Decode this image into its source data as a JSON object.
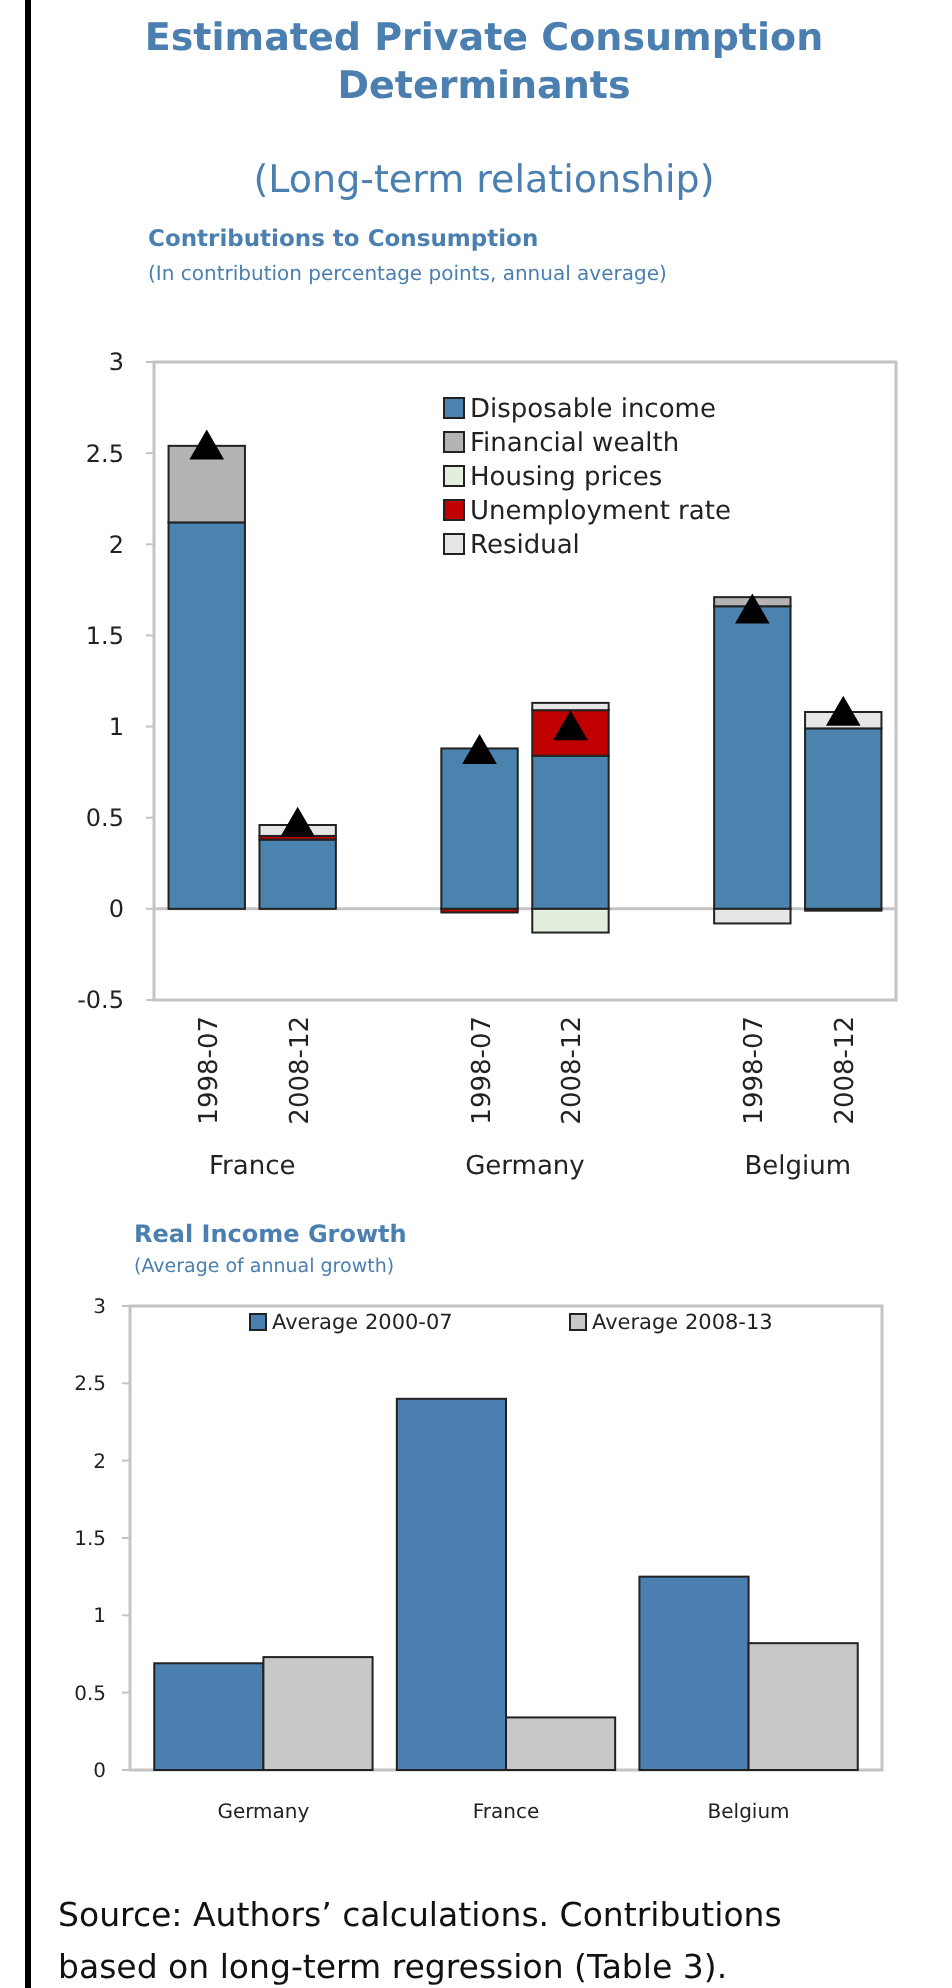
{
  "chart_data": [
    {
      "type": "bar",
      "title": "Estimated Private Consumption Determinants",
      "subtitle": "(Long-term relationship)",
      "stacked": true,
      "categories": [
        "1998-07",
        "2008-12",
        null,
        "1998-07",
        "2008-12",
        null,
        "1998-07",
        "2008-12"
      ],
      "ylim": [
        -0.5,
        3
      ],
      "yticks": [
        -0.5,
        0,
        0.5,
        1,
        1.5,
        2,
        2.5,
        3
      ],
      "legend": "top right",
      "annotations": [
        "Contributions to Consumption",
        "(In contribution percentage points, annual average)",
        "France",
        "Germany",
        "Belgium"
      ],
      "series": [
        {
          "name": "Disposable income",
          "color": "#4a84ae",
          "values": [
            2.12,
            0.38,
            null,
            0.88,
            0.84,
            null,
            1.66,
            0.99
          ]
        },
        {
          "name": "Financial wealth",
          "color": "#b4b4b4",
          "values": [
            0.42,
            null,
            null,
            null,
            null,
            null,
            0.05,
            null
          ]
        },
        {
          "name": "Housing prices",
          "color": "#e4eedc",
          "values": [
            null,
            null,
            null,
            null,
            -0.13,
            null,
            null,
            null
          ]
        },
        {
          "name": "Unemployment rate",
          "color": "#c00000",
          "values": [
            null,
            0.02,
            null,
            -0.02,
            0.25,
            null,
            null,
            -0.01
          ]
        },
        {
          "name": "Residual",
          "color": "#e6e6e6",
          "values": [
            null,
            0.06,
            null,
            null,
            0.04,
            null,
            -0.08,
            0.09
          ]
        },
        {
          "type": "scatter",
          "color": "#000000",
          "marker": "triangle",
          "values": [
            2.52,
            0.45,
            null,
            0.85,
            0.98,
            null,
            1.62,
            1.06
          ]
        }
      ]
    },
    {
      "type": "bar",
      "title": "Real Income Growth",
      "subtitle": "(Average of annual growth)",
      "categories": [
        "Germany",
        "France",
        "Belgium"
      ],
      "ylim": [
        0,
        3
      ],
      "yticks": [
        0,
        0.5,
        1,
        1.5,
        2,
        2.5,
        3
      ],
      "legend": "top",
      "annotations": [
        "Source: Authors’ calculations. Contributions based on long-term regression (Table 3)."
      ],
      "series": [
        {
          "name": "Average 2000-07",
          "color": "#4a7fb0",
          "values": [
            0.69,
            2.4,
            1.25
          ]
        },
        {
          "name": "Average 2008-13",
          "color": "#c8c8c8",
          "values": [
            0.73,
            0.34,
            0.82
          ]
        }
      ]
    }
  ]
}
